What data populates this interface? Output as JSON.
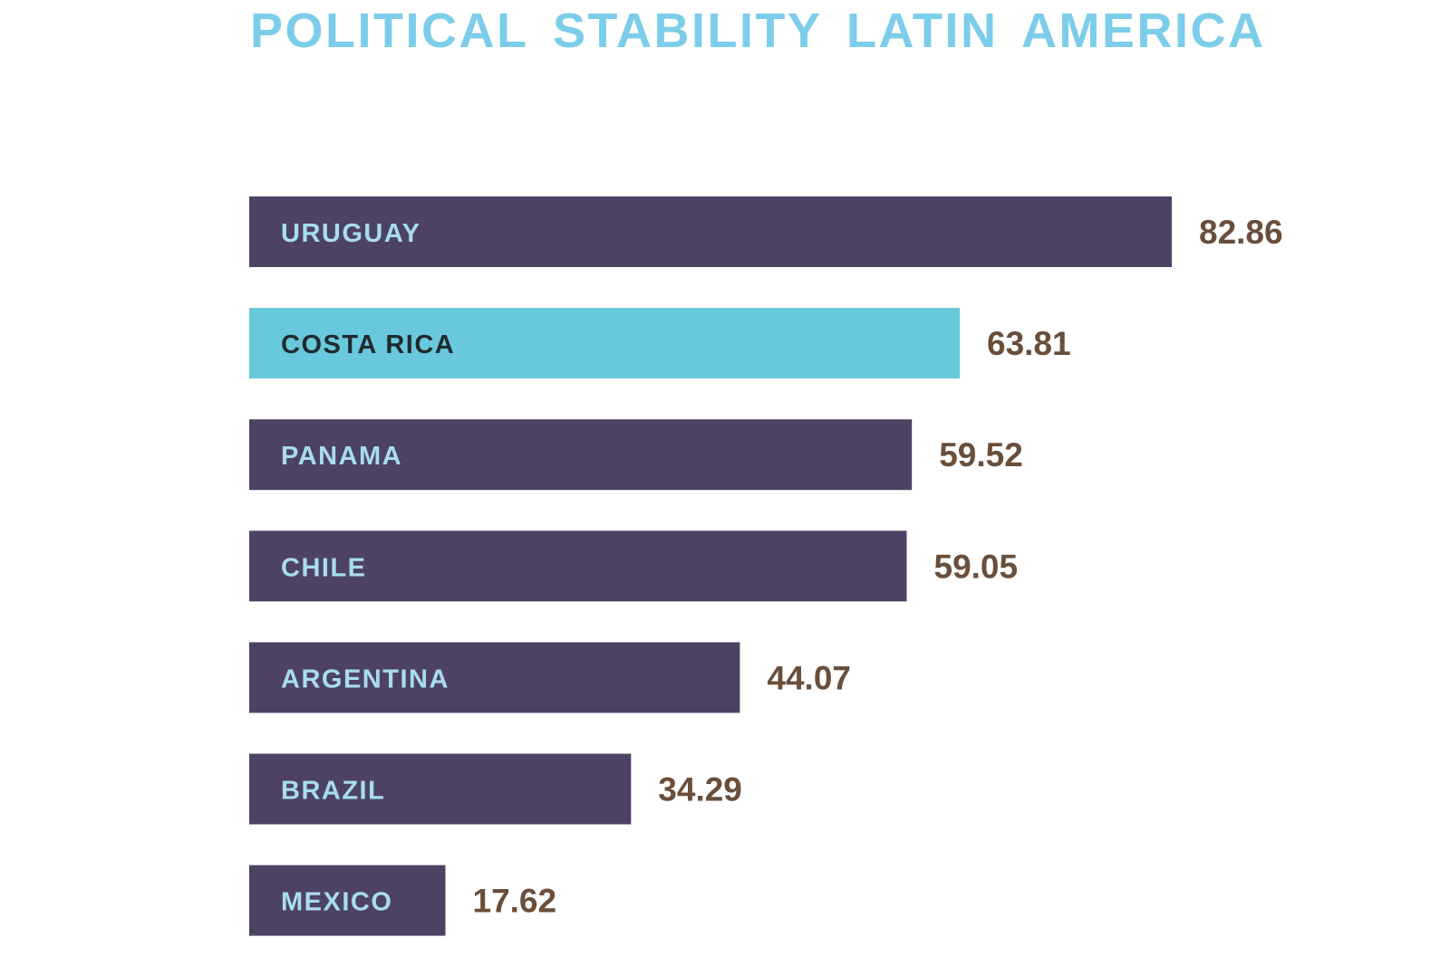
{
  "chart_data": {
    "type": "bar",
    "orientation": "horizontal",
    "title": "POLITICAL STABILITY LATIN AMERICA",
    "xlabel": "",
    "ylabel": "",
    "xlim": [
      0,
      82.86
    ],
    "grid": false,
    "legend": "none",
    "categories": [
      "URUGUAY",
      "COSTA RICA",
      "PANAMA",
      "CHILE",
      "ARGENTINA",
      "BRAZIL",
      "MEXICO"
    ],
    "values": [
      82.86,
      63.81,
      59.52,
      59.05,
      44.07,
      34.29,
      17.62
    ],
    "value_labels": [
      "82.86",
      "63.81",
      "59.52",
      "59.05",
      "44.07",
      "34.29",
      "17.62"
    ],
    "highlighted": [
      "COSTA RICA"
    ]
  },
  "colors": {
    "title": "#7ccde9",
    "bar": "#4d4264",
    "bar_highlight": "#68c8dc",
    "bar_label": "#a8dcef",
    "bar_label_highlight": "#1f2a2e",
    "value_label": "#6a4e3a"
  }
}
